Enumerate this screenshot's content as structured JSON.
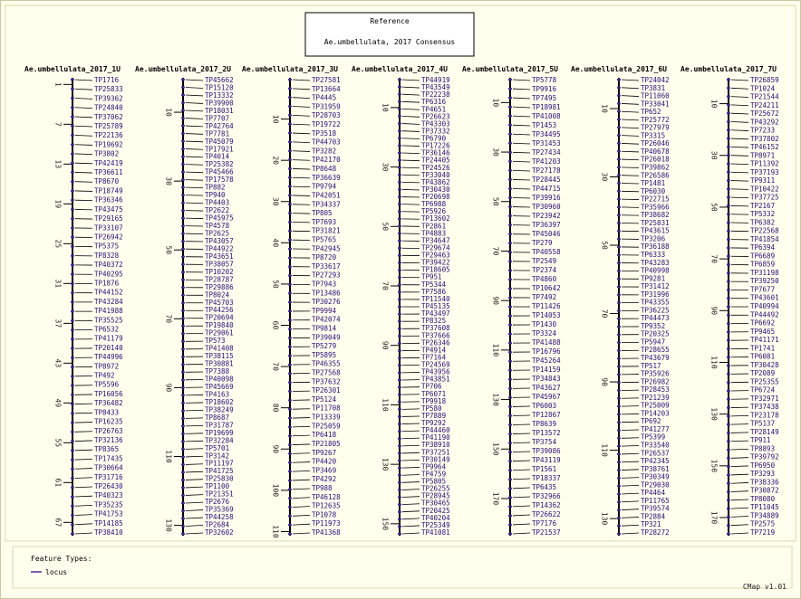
{
  "reference": {
    "title": "Reference",
    "subtitle": "Ae.umbellulata, 2017 Consensus"
  },
  "maps": [
    {
      "name": "Ae.umbellulata_2017_1U",
      "ylim": [
        0,
        69
      ],
      "ticks": [
        1,
        7,
        13,
        19,
        25,
        31,
        37,
        43,
        49,
        55,
        61,
        67
      ],
      "features": [
        "TP1716",
        "TP25833",
        "TP39362",
        "TP24840",
        "TP37062",
        "TP25789",
        "TP22136",
        "TP19692",
        "TP3802",
        "TP42419",
        "TP36611",
        "TP8670",
        "TP18749",
        "TP36346",
        "TP43475",
        "TP29165",
        "TP33107",
        "TP26942",
        "TP5375",
        "TP8328",
        "TP40372",
        "TP40295",
        "TP1876",
        "TP44152",
        "TP43284",
        "TP41988",
        "TP35525",
        "TP6532",
        "TP41179",
        "TP20140",
        "TP44996",
        "TP8972",
        "TP492",
        "TP5596",
        "TP16056",
        "TP36482",
        "TP8433",
        "TP16235",
        "TP26763",
        "TP32136",
        "TP8365",
        "TP17435",
        "TP30664",
        "TP31716",
        "TP26430",
        "TP40323",
        "TP35235",
        "TP41753",
        "TP14185",
        "TP38410"
      ]
    },
    {
      "name": "Ae.umbellulata_2017_2U",
      "ylim": [
        0,
        133
      ],
      "ticks": [
        10,
        30,
        50,
        70,
        90,
        110,
        130
      ],
      "features": [
        "TP45662",
        "TP15120",
        "TP13332",
        "TP39900",
        "TP18031",
        "TP7707",
        "TP42764",
        "TP7781",
        "TP45079",
        "TP17921",
        "TP4014",
        "TP25382",
        "TP45466",
        "TP17578",
        "TP882",
        "TP940",
        "TP4403",
        "TP2622",
        "TP45975",
        "TP4578",
        "TP2625",
        "TP43057",
        "TP44922",
        "TP43651",
        "TP38057",
        "TP10202",
        "TP28787",
        "TP29886",
        "TP8024",
        "TP45703",
        "TP44256",
        "TP20694",
        "TP19840",
        "TP29061",
        "TP573",
        "TP41408",
        "TP38115",
        "TP30881",
        "TP7388",
        "TP40098",
        "TP45669",
        "TP4163",
        "TP18602",
        "TP38249",
        "TP8687",
        "TP31787",
        "TP19699",
        "TP32284",
        "TP5701",
        "TP3142",
        "TP11197",
        "TP41725",
        "TP25830",
        "TP1100",
        "TP21351",
        "TP2676",
        "TP35369",
        "TP44258",
        "TP2684",
        "TP32602"
      ]
    },
    {
      "name": "Ae.umbellulata_2017_3U",
      "ylim": [
        0,
        111
      ],
      "ticks": [
        10,
        20,
        30,
        40,
        50,
        60,
        70,
        80,
        90,
        100,
        110
      ],
      "features": [
        "TP27581",
        "TP13664",
        "TP4445",
        "TP31959",
        "TP28703",
        "TP19722",
        "TP3518",
        "TP44703",
        "TP3282",
        "TP42170",
        "TP8648",
        "TP36639",
        "TP9794",
        "TP42051",
        "TP34337",
        "TP805",
        "TP7693",
        "TP31821",
        "TP5765",
        "TP42945",
        "TP8720",
        "TP33617",
        "TP27293",
        "TP7943",
        "TP13486",
        "TP30276",
        "TP9994",
        "TP42074",
        "TP9814",
        "TP39049",
        "TP5279",
        "TP5895",
        "TP46355",
        "TP27568",
        "TP37632",
        "TP26301",
        "TP5124",
        "TP11708",
        "TP13339",
        "TP25059",
        "TP6418",
        "TP21805",
        "TP9267",
        "TP4420",
        "TP3469",
        "TP4292",
        "TP988",
        "TP46128",
        "TP12635",
        "TP1078",
        "TP11973",
        "TP41368"
      ]
    },
    {
      "name": "Ae.umbellulata_2017_4U",
      "ylim": [
        0,
        154
      ],
      "ticks": [
        10,
        30,
        50,
        70,
        90,
        110,
        130,
        150
      ],
      "features": [
        "TP44919",
        "TP43549",
        "TP22238",
        "TP6316",
        "TP4651",
        "TP26623",
        "TP43303",
        "TP37332",
        "TP6790",
        "TP17226",
        "TP36146",
        "TP24405",
        "TP24526",
        "TP33040",
        "TP43862",
        "TP30430",
        "TP20698",
        "TP6988",
        "TP5926",
        "TP13602",
        "TP2861",
        "TP4883",
        "TP34647",
        "TP29674",
        "TP29463",
        "TP39422",
        "TP18605",
        "TP951",
        "TP5344",
        "TP7586",
        "TP11540",
        "TP45135",
        "TP43497",
        "TP8325",
        "TP37608",
        "TP37666",
        "TP26346",
        "TP4914",
        "TP7164",
        "TP24569",
        "TP43956",
        "TP43851",
        "TP706",
        "TP6071",
        "TP9918",
        "TP580",
        "TP7889",
        "TP9292",
        "TP44460",
        "TP41190",
        "TP38910",
        "TP37251",
        "TP30149",
        "TP9964",
        "TP4759",
        "TP5805",
        "TP26255",
        "TP28945",
        "TP30465",
        "TP20425",
        "TP40204",
        "TP25349",
        "TP41081"
      ]
    },
    {
      "name": "Ae.umbellulata_2017_5U",
      "ylim": [
        0,
        185
      ],
      "ticks": [
        10,
        30,
        50,
        70,
        90,
        110,
        130,
        150,
        170
      ],
      "features": [
        "TP5778",
        "TP9916",
        "TP7495",
        "TP18981",
        "TP41008",
        "TP1453",
        "TP34495",
        "TP31453",
        "TP27434",
        "TP41203",
        "TP27178",
        "TP28445",
        "TP44715",
        "TP39916",
        "TP30960",
        "TP23942",
        "TP36397",
        "TP45046",
        "TP279",
        "TP40558",
        "TP2549",
        "TP2374",
        "TP4860",
        "TP10642",
        "TP7492",
        "TP11426",
        "TP14053",
        "TP1430",
        "TP3324",
        "TP41488",
        "TP16796",
        "TP45264",
        "TP14159",
        "TP34843",
        "TP43627",
        "TP45967",
        "TP6003",
        "TP12867",
        "TP8639",
        "TP13572",
        "TP3754",
        "TP39086",
        "TP43119",
        "TP1561",
        "TP18337",
        "TP6435",
        "TP32966",
        "TP14362",
        "TP26622",
        "TP7176",
        "TP21537"
      ]
    },
    {
      "name": "Ae.umbellulata_2017_6U",
      "ylim": [
        1,
        135
      ],
      "ticks": [
        10,
        30,
        50,
        70,
        90,
        110,
        130
      ],
      "features": [
        "TP24042",
        "TP3831",
        "TP11060",
        "TP33041",
        "TP652",
        "TP25772",
        "TP27979",
        "TP3315",
        "TP26046",
        "TP40678",
        "TP26018",
        "TP39862",
        "TP26586",
        "TP1481",
        "TP6030",
        "TP22715",
        "TP35966",
        "TP38682",
        "TP25831",
        "TP43615",
        "TP3206",
        "TP36188",
        "TP6333",
        "TP43283",
        "TP40998",
        "TP9281",
        "TP31412",
        "TP31996",
        "TP43355",
        "TP36225",
        "TP44473",
        "TP9352",
        "TP20325",
        "TP5947",
        "TP28655",
        "TP43679",
        "TP517",
        "TP35926",
        "TP26982",
        "TP28453",
        "TP21239",
        "TP25009",
        "TP14203",
        "TP692",
        "TP41277",
        "TP5399",
        "TP33540",
        "TP26537",
        "TP42345",
        "TP38761",
        "TP30349",
        "TP29030",
        "TP4464",
        "TP11765",
        "TP39574",
        "TP2884",
        "TP321",
        "TP28272"
      ]
    },
    {
      "name": "Ae.umbellulata_2017_7U",
      "ylim": [
        0,
        177
      ],
      "ticks": [
        10,
        30,
        50,
        70,
        90,
        110,
        130,
        150,
        170
      ],
      "features": [
        "TP26859",
        "TP1024",
        "TP21544",
        "TP24211",
        "TP25672",
        "TP43292",
        "TP7233",
        "TP37802",
        "TP46152",
        "TP8971",
        "TP11392",
        "TP37193",
        "TP9311",
        "TP10422",
        "TP37725",
        "TP2167",
        "TP5332",
        "TP6382",
        "TP22568",
        "TP41854",
        "TP6394",
        "TP6689",
        "TP6859",
        "TP31198",
        "TP39250",
        "TP7677",
        "TP43601",
        "TP40994",
        "TP44492",
        "TP6692",
        "TP9465",
        "TP41171",
        "TP1741",
        "TP6081",
        "TP30428",
        "TP2089",
        "TP25355",
        "TP6724",
        "TP32971",
        "TP37438",
        "TP23178",
        "TP5137",
        "TP28149",
        "TP911",
        "TP8893",
        "TP39792",
        "TP6950",
        "TP3293",
        "TP38336",
        "TP30872",
        "TP8080",
        "TP11045",
        "TP34889",
        "TP2575",
        "TP7219"
      ]
    }
  ],
  "legend": {
    "title": "Feature Types:",
    "items": [
      "locus"
    ]
  },
  "footer": "CMap v1.01"
}
